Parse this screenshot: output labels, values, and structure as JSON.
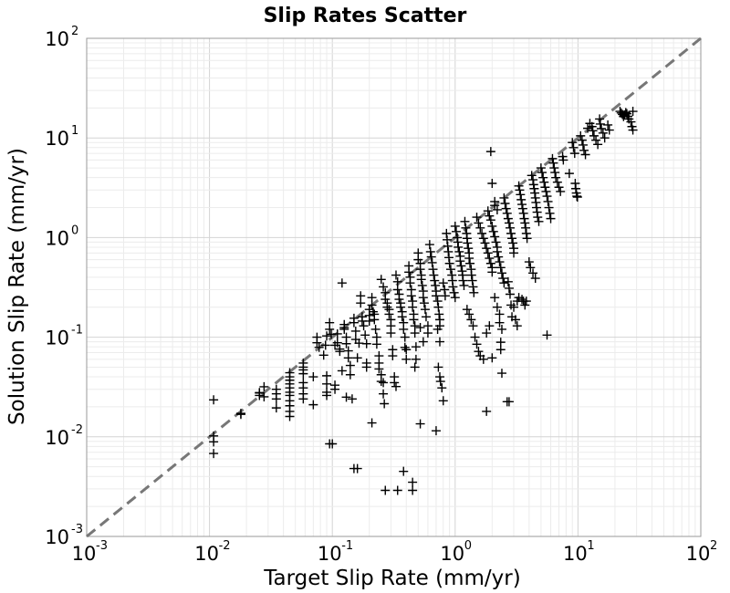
{
  "chart_data": {
    "type": "scatter",
    "title": "Slip Rates Scatter",
    "xlabel": "Target Slip Rate (mm/yr)",
    "ylabel": "Solution Slip Rate (mm/yr)",
    "xscale": "log",
    "yscale": "log",
    "xlim": [
      0.001,
      100
    ],
    "ylim": [
      0.001,
      100
    ],
    "grid": true,
    "marker": "+",
    "marker_color": "#000000",
    "reference_line": {
      "type": "y=x",
      "style": "dashed",
      "color": "#777777"
    },
    "x_ticks": [
      {
        "base": "10",
        "exp": "-3"
      },
      {
        "base": "10",
        "exp": "-2"
      },
      {
        "base": "10",
        "exp": "-1"
      },
      {
        "base": "10",
        "exp": "0"
      },
      {
        "base": "10",
        "exp": "1"
      },
      {
        "base": "10",
        "exp": "2"
      }
    ],
    "y_ticks": [
      {
        "base": "10",
        "exp": "-3"
      },
      {
        "base": "10",
        "exp": "-2"
      },
      {
        "base": "10",
        "exp": "-1"
      },
      {
        "base": "10",
        "exp": "0"
      },
      {
        "base": "10",
        "exp": "1"
      },
      {
        "base": "10",
        "exp": "2"
      }
    ],
    "points": [
      [
        0.0108,
        0.0235
      ],
      [
        0.0108,
        0.0102
      ],
      [
        0.0108,
        0.0089
      ],
      [
        0.0108,
        0.0068
      ],
      [
        0.018,
        0.0172
      ],
      [
        0.018,
        0.0168
      ],
      [
        0.0255,
        0.0275
      ],
      [
        0.0255,
        0.026
      ],
      [
        0.0255,
        0.0278
      ],
      [
        0.0278,
        0.0318
      ],
      [
        0.0278,
        0.0252
      ],
      [
        0.035,
        0.03
      ],
      [
        0.035,
        0.027
      ],
      [
        0.035,
        0.024
      ],
      [
        0.035,
        0.0195
      ],
      [
        0.045,
        0.044
      ],
      [
        0.045,
        0.04
      ],
      [
        0.045,
        0.037
      ],
      [
        0.045,
        0.034
      ],
      [
        0.045,
        0.031
      ],
      [
        0.045,
        0.028
      ],
      [
        0.045,
        0.026
      ],
      [
        0.045,
        0.023
      ],
      [
        0.045,
        0.0205
      ],
      [
        0.045,
        0.018
      ],
      [
        0.045,
        0.016
      ],
      [
        0.058,
        0.055
      ],
      [
        0.058,
        0.05
      ],
      [
        0.058,
        0.047
      ],
      [
        0.058,
        0.043
      ],
      [
        0.058,
        0.035
      ],
      [
        0.058,
        0.031
      ],
      [
        0.058,
        0.027
      ],
      [
        0.058,
        0.024
      ],
      [
        0.07,
        0.04
      ],
      [
        0.07,
        0.021
      ],
      [
        0.075,
        0.1
      ],
      [
        0.075,
        0.088
      ],
      [
        0.078,
        0.079
      ],
      [
        0.085,
        0.066
      ],
      [
        0.088,
        0.083
      ],
      [
        0.09,
        0.103
      ],
      [
        0.09,
        0.041
      ],
      [
        0.09,
        0.034
      ],
      [
        0.09,
        0.028
      ],
      [
        0.09,
        0.026
      ],
      [
        0.095,
        0.14
      ],
      [
        0.095,
        0.12
      ],
      [
        0.098,
        0.107
      ],
      [
        0.105,
        0.033
      ],
      [
        0.105,
        0.03
      ],
      [
        0.105,
        0.083
      ],
      [
        0.11,
        0.108
      ],
      [
        0.11,
        0.088
      ],
      [
        0.115,
        0.076
      ],
      [
        0.115,
        0.072
      ],
      [
        0.12,
        0.046
      ],
      [
        0.125,
        0.134
      ],
      [
        0.125,
        0.125
      ],
      [
        0.125,
        0.12
      ],
      [
        0.13,
        0.1
      ],
      [
        0.13,
        0.086
      ],
      [
        0.135,
        0.073
      ],
      [
        0.135,
        0.062
      ],
      [
        0.12,
        0.35
      ],
      [
        0.13,
        0.025
      ],
      [
        0.14,
        0.052
      ],
      [
        0.14,
        0.042
      ],
      [
        0.145,
        0.024
      ],
      [
        0.15,
        0.155
      ],
      [
        0.15,
        0.14
      ],
      [
        0.155,
        0.115
      ],
      [
        0.155,
        0.095
      ],
      [
        0.16,
        0.062
      ],
      [
        0.165,
        0.087
      ],
      [
        0.17,
        0.26
      ],
      [
        0.17,
        0.22
      ],
      [
        0.175,
        0.16
      ],
      [
        0.175,
        0.145
      ],
      [
        0.18,
        0.13
      ],
      [
        0.185,
        0.105
      ],
      [
        0.19,
        0.086
      ],
      [
        0.19,
        0.055
      ],
      [
        0.19,
        0.05
      ],
      [
        0.2,
        0.19
      ],
      [
        0.2,
        0.165
      ],
      [
        0.2,
        0.145
      ],
      [
        0.21,
        0.25
      ],
      [
        0.21,
        0.21
      ],
      [
        0.215,
        0.18
      ],
      [
        0.22,
        0.17
      ],
      [
        0.22,
        0.15
      ],
      [
        0.225,
        0.12
      ],
      [
        0.23,
        0.1
      ],
      [
        0.23,
        0.085
      ],
      [
        0.24,
        0.065
      ],
      [
        0.24,
        0.055
      ],
      [
        0.24,
        0.048
      ],
      [
        0.25,
        0.042
      ],
      [
        0.25,
        0.036
      ],
      [
        0.26,
        0.035
      ],
      [
        0.26,
        0.027
      ],
      [
        0.265,
        0.0215
      ],
      [
        0.25,
        0.38
      ],
      [
        0.26,
        0.32
      ],
      [
        0.27,
        0.28
      ],
      [
        0.27,
        0.24
      ],
      [
        0.28,
        0.22
      ],
      [
        0.28,
        0.2
      ],
      [
        0.29,
        0.19
      ],
      [
        0.29,
        0.17
      ],
      [
        0.3,
        0.15
      ],
      [
        0.3,
        0.13
      ],
      [
        0.3,
        0.11
      ],
      [
        0.31,
        0.075
      ],
      [
        0.31,
        0.065
      ],
      [
        0.32,
        0.04
      ],
      [
        0.32,
        0.035
      ],
      [
        0.33,
        0.032
      ],
      [
        0.33,
        0.42
      ],
      [
        0.34,
        0.36
      ],
      [
        0.34,
        0.3
      ],
      [
        0.35,
        0.27
      ],
      [
        0.35,
        0.24
      ],
      [
        0.36,
        0.22
      ],
      [
        0.36,
        0.2
      ],
      [
        0.37,
        0.18
      ],
      [
        0.37,
        0.16
      ],
      [
        0.38,
        0.14
      ],
      [
        0.38,
        0.12
      ],
      [
        0.39,
        0.1
      ],
      [
        0.39,
        0.079
      ],
      [
        0.4,
        0.075
      ],
      [
        0.4,
        0.06
      ],
      [
        0.42,
        0.52
      ],
      [
        0.42,
        0.45
      ],
      [
        0.43,
        0.4
      ],
      [
        0.43,
        0.35
      ],
      [
        0.44,
        0.3
      ],
      [
        0.44,
        0.26
      ],
      [
        0.45,
        0.23
      ],
      [
        0.45,
        0.2
      ],
      [
        0.46,
        0.17
      ],
      [
        0.46,
        0.15
      ],
      [
        0.47,
        0.13
      ],
      [
        0.47,
        0.11
      ],
      [
        0.48,
        0.08
      ],
      [
        0.48,
        0.06
      ],
      [
        0.47,
        0.05
      ],
      [
        0.45,
        0.0035
      ],
      [
        0.45,
        0.0029
      ],
      [
        0.34,
        0.0029
      ],
      [
        0.38,
        0.0045
      ],
      [
        0.27,
        0.0029
      ],
      [
        0.21,
        0.0138
      ],
      [
        0.16,
        0.0048
      ],
      [
        0.15,
        0.0048
      ],
      [
        0.1,
        0.0085
      ],
      [
        0.095,
        0.0085
      ],
      [
        0.5,
        0.7
      ],
      [
        0.5,
        0.6
      ],
      [
        0.52,
        0.55
      ],
      [
        0.52,
        0.48
      ],
      [
        0.53,
        0.42
      ],
      [
        0.53,
        0.38
      ],
      [
        0.54,
        0.33
      ],
      [
        0.55,
        0.29
      ],
      [
        0.55,
        0.25
      ],
      [
        0.56,
        0.22
      ],
      [
        0.57,
        0.19
      ],
      [
        0.58,
        0.16
      ],
      [
        0.6,
        0.13
      ],
      [
        0.6,
        0.11
      ],
      [
        0.52,
        0.0135
      ],
      [
        0.52,
        0.125
      ],
      [
        0.55,
        0.09
      ],
      [
        0.62,
        0.85
      ],
      [
        0.63,
        0.72
      ],
      [
        0.64,
        0.64
      ],
      [
        0.65,
        0.56
      ],
      [
        0.66,
        0.48
      ],
      [
        0.67,
        0.42
      ],
      [
        0.68,
        0.37
      ],
      [
        0.69,
        0.33
      ],
      [
        0.7,
        0.29
      ],
      [
        0.7,
        0.26
      ],
      [
        0.72,
        0.23
      ],
      [
        0.73,
        0.2
      ],
      [
        0.74,
        0.17
      ],
      [
        0.75,
        0.15
      ],
      [
        0.75,
        0.13
      ],
      [
        0.72,
        0.12
      ],
      [
        0.75,
        0.09
      ],
      [
        0.73,
        0.05
      ],
      [
        0.75,
        0.04
      ],
      [
        0.76,
        0.036
      ],
      [
        0.78,
        0.031
      ],
      [
        0.8,
        0.023
      ],
      [
        0.7,
        0.0115
      ],
      [
        0.8,
        0.35
      ],
      [
        0.82,
        0.3
      ],
      [
        0.83,
        0.26
      ],
      [
        0.85,
        1.1
      ],
      [
        0.86,
        0.95
      ],
      [
        0.87,
        0.82
      ],
      [
        0.88,
        0.72
      ],
      [
        0.89,
        0.63
      ],
      [
        0.9,
        0.55
      ],
      [
        0.92,
        0.48
      ],
      [
        0.94,
        0.42
      ],
      [
        0.95,
        0.37
      ],
      [
        0.96,
        0.32
      ],
      [
        0.98,
        0.28
      ],
      [
        1.0,
        0.25
      ],
      [
        1.0,
        1.3
      ],
      [
        1.02,
        1.15
      ],
      [
        1.04,
        1.0
      ],
      [
        1.05,
        0.9
      ],
      [
        1.06,
        0.8
      ],
      [
        1.08,
        0.72
      ],
      [
        1.1,
        0.65
      ],
      [
        1.1,
        0.58
      ],
      [
        1.12,
        0.52
      ],
      [
        1.14,
        0.46
      ],
      [
        1.15,
        0.42
      ],
      [
        1.16,
        0.37
      ],
      [
        1.18,
        0.33
      ],
      [
        1.2,
        1.45
      ],
      [
        1.22,
        1.25
      ],
      [
        1.24,
        1.1
      ],
      [
        1.25,
        0.98
      ],
      [
        1.26,
        0.88
      ],
      [
        1.28,
        0.78
      ],
      [
        1.3,
        0.7
      ],
      [
        1.3,
        0.62
      ],
      [
        1.32,
        0.55
      ],
      [
        1.35,
        0.48
      ],
      [
        1.36,
        0.42
      ],
      [
        1.38,
        0.37
      ],
      [
        1.4,
        0.32
      ],
      [
        1.42,
        0.28
      ],
      [
        1.25,
        0.19
      ],
      [
        1.3,
        0.17
      ],
      [
        1.35,
        0.15
      ],
      [
        1.4,
        0.13
      ],
      [
        1.45,
        0.1
      ],
      [
        1.5,
        0.085
      ],
      [
        1.55,
        0.072
      ],
      [
        1.6,
        0.065
      ],
      [
        1.7,
        0.06
      ],
      [
        1.8,
        0.11
      ],
      [
        1.9,
        0.13
      ],
      [
        1.8,
        0.018
      ],
      [
        1.5,
        1.6
      ],
      [
        1.55,
        1.4
      ],
      [
        1.6,
        1.25
      ],
      [
        1.65,
        1.1
      ],
      [
        1.7,
        0.98
      ],
      [
        1.75,
        0.88
      ],
      [
        1.8,
        0.78
      ],
      [
        1.85,
        0.7
      ],
      [
        1.9,
        0.62
      ],
      [
        1.95,
        0.55
      ],
      [
        2.0,
        0.5
      ],
      [
        2.0,
        0.45
      ],
      [
        1.85,
        1.85
      ],
      [
        1.9,
        1.65
      ],
      [
        1.95,
        1.5
      ],
      [
        2.0,
        1.3
      ],
      [
        2.05,
        1.15
      ],
      [
        2.1,
        1.02
      ],
      [
        2.15,
        0.9
      ],
      [
        2.2,
        0.8
      ],
      [
        2.2,
        0.72
      ],
      [
        2.25,
        0.64
      ],
      [
        2.3,
        0.57
      ],
      [
        2.35,
        0.5
      ],
      [
        2.4,
        0.44
      ],
      [
        2.45,
        0.39
      ],
      [
        2.5,
        0.35
      ],
      [
        1.95,
        7.3
      ],
      [
        2.0,
        3.5
      ],
      [
        2.1,
        2.3
      ],
      [
        2.1,
        2.1
      ],
      [
        2.2,
        1.9
      ],
      [
        2.1,
        0.25
      ],
      [
        2.2,
        0.2
      ],
      [
        2.3,
        0.17
      ],
      [
        2.3,
        0.14
      ],
      [
        2.4,
        0.12
      ],
      [
        2.35,
        0.089
      ],
      [
        2.35,
        0.075
      ],
      [
        2.0,
        0.062
      ],
      [
        2.4,
        0.0435
      ],
      [
        2.65,
        0.0225
      ],
      [
        2.75,
        0.0225
      ],
      [
        2.5,
        2.5
      ],
      [
        2.55,
        2.2
      ],
      [
        2.6,
        1.95
      ],
      [
        2.65,
        1.75
      ],
      [
        2.7,
        1.55
      ],
      [
        2.75,
        1.4
      ],
      [
        2.8,
        1.25
      ],
      [
        2.85,
        1.1
      ],
      [
        2.9,
        0.98
      ],
      [
        2.95,
        0.88
      ],
      [
        3.0,
        0.78
      ],
      [
        3.0,
        0.7
      ],
      [
        2.7,
        0.36
      ],
      [
        2.75,
        0.31
      ],
      [
        2.8,
        0.27
      ],
      [
        2.85,
        0.21
      ],
      [
        2.9,
        0.16
      ],
      [
        3.0,
        0.2
      ],
      [
        3.1,
        0.15
      ],
      [
        3.2,
        0.13
      ],
      [
        3.3,
        3.3
      ],
      [
        3.35,
        3.0
      ],
      [
        3.4,
        2.7
      ],
      [
        3.45,
        2.4
      ],
      [
        3.5,
        2.15
      ],
      [
        3.55,
        1.95
      ],
      [
        3.6,
        1.75
      ],
      [
        3.65,
        1.55
      ],
      [
        3.7,
        1.4
      ],
      [
        3.75,
        1.25
      ],
      [
        3.8,
        1.1
      ],
      [
        3.85,
        0.98
      ],
      [
        3.2,
        0.23
      ],
      [
        3.3,
        0.25
      ],
      [
        3.5,
        0.24
      ],
      [
        3.6,
        0.23
      ],
      [
        3.7,
        0.21
      ],
      [
        3.8,
        0.23
      ],
      [
        4.0,
        0.57
      ],
      [
        4.1,
        0.5
      ],
      [
        4.3,
        0.44
      ],
      [
        4.5,
        0.39
      ],
      [
        4.2,
        4.2
      ],
      [
        4.3,
        3.8
      ],
      [
        4.35,
        3.4
      ],
      [
        4.4,
        3.1
      ],
      [
        4.45,
        2.8
      ],
      [
        4.5,
        2.5
      ],
      [
        4.55,
        2.25
      ],
      [
        4.6,
        2.0
      ],
      [
        4.65,
        1.8
      ],
      [
        4.7,
        1.6
      ],
      [
        4.8,
        1.45
      ],
      [
        5.0,
        5.0
      ],
      [
        5.1,
        4.5
      ],
      [
        5.2,
        4.0
      ],
      [
        5.3,
        3.6
      ],
      [
        5.4,
        3.2
      ],
      [
        5.5,
        2.9
      ],
      [
        5.6,
        2.6
      ],
      [
        5.7,
        2.3
      ],
      [
        5.8,
        2.0
      ],
      [
        5.9,
        1.75
      ],
      [
        6.0,
        1.55
      ],
      [
        5.6,
        0.105
      ],
      [
        6.2,
        6.2
      ],
      [
        6.3,
        5.6
      ],
      [
        6.4,
        5.0
      ],
      [
        6.5,
        4.5
      ],
      [
        6.6,
        4.0
      ],
      [
        6.8,
        3.6
      ],
      [
        7.0,
        3.2
      ],
      [
        7.2,
        2.9
      ],
      [
        7.5,
        6.5
      ],
      [
        7.6,
        6.0
      ],
      [
        8.5,
        4.4
      ],
      [
        9.0,
        9.0
      ],
      [
        9.2,
        8.0
      ],
      [
        9.4,
        7.0
      ],
      [
        9.5,
        3.5
      ],
      [
        9.6,
        3.1
      ],
      [
        9.7,
        2.8
      ],
      [
        9.8,
        2.6
      ],
      [
        9.9,
        2.55
      ],
      [
        10.5,
        10.5
      ],
      [
        10.8,
        9.5
      ],
      [
        11.0,
        8.5
      ],
      [
        11.2,
        7.5
      ],
      [
        11.5,
        6.8
      ],
      [
        12.0,
        12.5
      ],
      [
        12.5,
        14.0
      ],
      [
        13.0,
        13.0
      ],
      [
        13.2,
        11.8
      ],
      [
        13.5,
        10.5
      ],
      [
        14.0,
        9.5
      ],
      [
        14.5,
        8.6
      ],
      [
        15.0,
        15.5
      ],
      [
        15.2,
        13.8
      ],
      [
        15.5,
        12.4
      ],
      [
        16.0,
        11.2
      ],
      [
        16.5,
        10.0
      ],
      [
        17.5,
        13.5
      ],
      [
        18.0,
        12.0
      ],
      [
        22.0,
        18.5
      ],
      [
        22.5,
        17.8
      ],
      [
        23.0,
        17.2
      ],
      [
        23.5,
        16.4
      ],
      [
        24.0,
        17.0
      ],
      [
        24.5,
        18.0
      ],
      [
        25.0,
        17.5
      ],
      [
        25.5,
        16.5
      ],
      [
        26.0,
        15.5
      ],
      [
        27.0,
        14.5
      ],
      [
        27.5,
        13.0
      ],
      [
        28.0,
        12.0
      ],
      [
        28.0,
        18.5
      ]
    ]
  }
}
